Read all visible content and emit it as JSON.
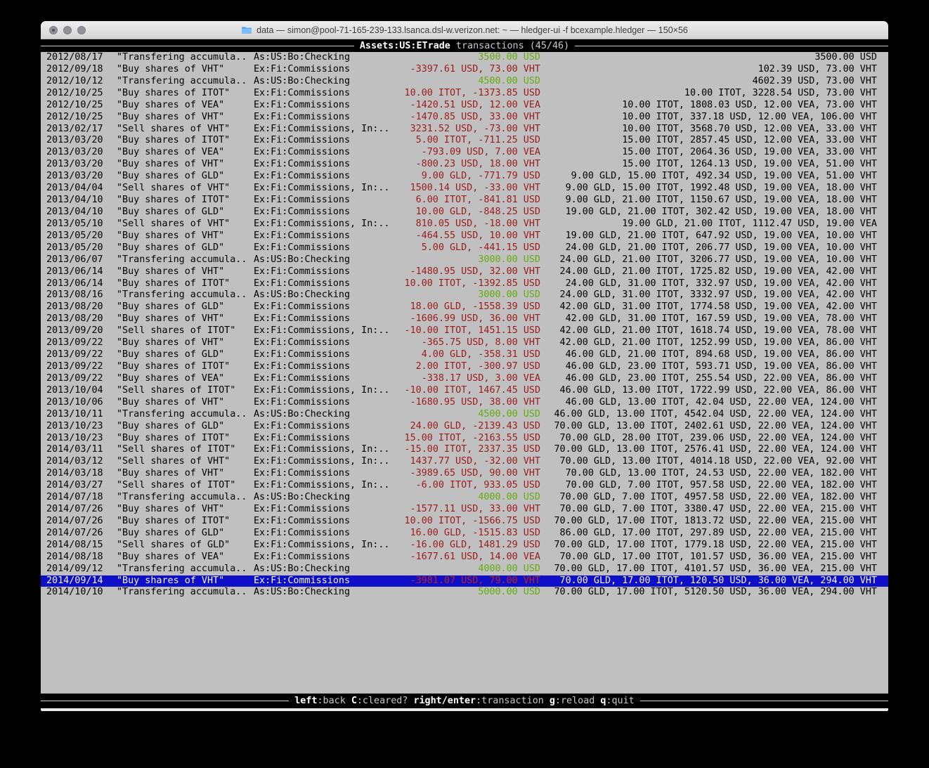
{
  "window": {
    "title": "data — simon@pool-71-165-239-133.lsanca.dsl-w.verizon.net: ~ — hledger-ui -f bcexample.hledger — 150×56"
  },
  "header": {
    "account": "Assets:US:ETrade",
    "mode": " transactions (45/46)"
  },
  "footer": {
    "keys": [
      {
        "key": "left",
        "label": ":back"
      },
      {
        "key": "C",
        "label": ":cleared?"
      },
      {
        "key": "right/enter",
        "label": ":transaction"
      },
      {
        "key": "g",
        "label": ":reload"
      },
      {
        "key": "q",
        "label": ":quit"
      }
    ]
  },
  "colors": {
    "term-bg": "#c0c0c0",
    "neg-red": "#9b1b1b",
    "pos-green": "#63ae0d",
    "sel-bg": "#0f0fc8",
    "sel-red": "#bb2222",
    "bar-dim": "#c9c9c9",
    "folder-blue": "#58a7f3"
  },
  "register": {
    "rows": [
      {
        "date": "2012/08/17",
        "description": "\"Transfering accumula..",
        "accounts": "As:US:Bo:Checking",
        "amount": "3500.00 USD",
        "amount_color": "green",
        "balance": "3500.00 USD",
        "selected": false
      },
      {
        "date": "2012/09/18",
        "description": "\"Buy shares of VHT\"",
        "accounts": "Ex:Fi:Commissions",
        "amount": "-3397.61 USD, 73.00 VHT",
        "amount_color": "red",
        "balance": "102.39 USD, 73.00 VHT",
        "selected": false
      },
      {
        "date": "2012/10/12",
        "description": "\"Transfering accumula..",
        "accounts": "As:US:Bo:Checking",
        "amount": "4500.00 USD",
        "amount_color": "green",
        "balance": "4602.39 USD, 73.00 VHT",
        "selected": false
      },
      {
        "date": "2012/10/25",
        "description": "\"Buy shares of ITOT\"",
        "accounts": "Ex:Fi:Commissions",
        "amount": "10.00 ITOT, -1373.85 USD",
        "amount_color": "red",
        "balance": "10.00 ITOT, 3228.54 USD, 73.00 VHT",
        "selected": false
      },
      {
        "date": "2012/10/25",
        "description": "\"Buy shares of VEA\"",
        "accounts": "Ex:Fi:Commissions",
        "amount": "-1420.51 USD, 12.00 VEA",
        "amount_color": "red",
        "balance": "10.00 ITOT, 1808.03 USD, 12.00 VEA, 73.00 VHT",
        "selected": false
      },
      {
        "date": "2012/10/25",
        "description": "\"Buy shares of VHT\"",
        "accounts": "Ex:Fi:Commissions",
        "amount": "-1470.85 USD, 33.00 VHT",
        "amount_color": "red",
        "balance": "10.00 ITOT, 337.18 USD, 12.00 VEA, 106.00 VHT",
        "selected": false
      },
      {
        "date": "2013/02/17",
        "description": "\"Sell shares of VHT\"",
        "accounts": "Ex:Fi:Commissions, In:..",
        "amount": "3231.52 USD, -73.00 VHT",
        "amount_color": "red",
        "balance": "10.00 ITOT, 3568.70 USD, 12.00 VEA, 33.00 VHT",
        "selected": false
      },
      {
        "date": "2013/03/20",
        "description": "\"Buy shares of ITOT\"",
        "accounts": "Ex:Fi:Commissions",
        "amount": "5.00 ITOT, -711.25 USD",
        "amount_color": "red",
        "balance": "15.00 ITOT, 2857.45 USD, 12.00 VEA, 33.00 VHT",
        "selected": false
      },
      {
        "date": "2013/03/20",
        "description": "\"Buy shares of VEA\"",
        "accounts": "Ex:Fi:Commissions",
        "amount": "-793.09 USD, 7.00 VEA",
        "amount_color": "red",
        "balance": "15.00 ITOT, 2064.36 USD, 19.00 VEA, 33.00 VHT",
        "selected": false
      },
      {
        "date": "2013/03/20",
        "description": "\"Buy shares of VHT\"",
        "accounts": "Ex:Fi:Commissions",
        "amount": "-800.23 USD, 18.00 VHT",
        "amount_color": "red",
        "balance": "15.00 ITOT, 1264.13 USD, 19.00 VEA, 51.00 VHT",
        "selected": false
      },
      {
        "date": "2013/03/20",
        "description": "\"Buy shares of GLD\"",
        "accounts": "Ex:Fi:Commissions",
        "amount": "9.00 GLD, -771.79 USD",
        "amount_color": "red",
        "balance": "9.00 GLD, 15.00 ITOT, 492.34 USD, 19.00 VEA, 51.00 VHT",
        "selected": false
      },
      {
        "date": "2013/04/04",
        "description": "\"Sell shares of VHT\"",
        "accounts": "Ex:Fi:Commissions, In:..",
        "amount": "1500.14 USD, -33.00 VHT",
        "amount_color": "red",
        "balance": "9.00 GLD, 15.00 ITOT, 1992.48 USD, 19.00 VEA, 18.00 VHT",
        "selected": false
      },
      {
        "date": "2013/04/10",
        "description": "\"Buy shares of ITOT\"",
        "accounts": "Ex:Fi:Commissions",
        "amount": "6.00 ITOT, -841.81 USD",
        "amount_color": "red",
        "balance": "9.00 GLD, 21.00 ITOT, 1150.67 USD, 19.00 VEA, 18.00 VHT",
        "selected": false
      },
      {
        "date": "2013/04/10",
        "description": "\"Buy shares of GLD\"",
        "accounts": "Ex:Fi:Commissions",
        "amount": "10.00 GLD, -848.25 USD",
        "amount_color": "red",
        "balance": "19.00 GLD, 21.00 ITOT, 302.42 USD, 19.00 VEA, 18.00 VHT",
        "selected": false
      },
      {
        "date": "2013/05/10",
        "description": "\"Sell shares of VHT\"",
        "accounts": "Ex:Fi:Commissions, In:..",
        "amount": "810.05 USD, -18.00 VHT",
        "amount_color": "red",
        "balance": "19.00 GLD, 21.00 ITOT, 1112.47 USD, 19.00 VEA",
        "selected": false
      },
      {
        "date": "2013/05/20",
        "description": "\"Buy shares of VHT\"",
        "accounts": "Ex:Fi:Commissions",
        "amount": "-464.55 USD, 10.00 VHT",
        "amount_color": "red",
        "balance": "19.00 GLD, 21.00 ITOT, 647.92 USD, 19.00 VEA, 10.00 VHT",
        "selected": false
      },
      {
        "date": "2013/05/20",
        "description": "\"Buy shares of GLD\"",
        "accounts": "Ex:Fi:Commissions",
        "amount": "5.00 GLD, -441.15 USD",
        "amount_color": "red",
        "balance": "24.00 GLD, 21.00 ITOT, 206.77 USD, 19.00 VEA, 10.00 VHT",
        "selected": false
      },
      {
        "date": "2013/06/07",
        "description": "\"Transfering accumula..",
        "accounts": "As:US:Bo:Checking",
        "amount": "3000.00 USD",
        "amount_color": "green",
        "balance": "24.00 GLD, 21.00 ITOT, 3206.77 USD, 19.00 VEA, 10.00 VHT",
        "selected": false
      },
      {
        "date": "2013/06/14",
        "description": "\"Buy shares of VHT\"",
        "accounts": "Ex:Fi:Commissions",
        "amount": "-1480.95 USD, 32.00 VHT",
        "amount_color": "red",
        "balance": "24.00 GLD, 21.00 ITOT, 1725.82 USD, 19.00 VEA, 42.00 VHT",
        "selected": false
      },
      {
        "date": "2013/06/14",
        "description": "\"Buy shares of ITOT\"",
        "accounts": "Ex:Fi:Commissions",
        "amount": "10.00 ITOT, -1392.85 USD",
        "amount_color": "red",
        "balance": "24.00 GLD, 31.00 ITOT, 332.97 USD, 19.00 VEA, 42.00 VHT",
        "selected": false
      },
      {
        "date": "2013/08/16",
        "description": "\"Transfering accumula..",
        "accounts": "As:US:Bo:Checking",
        "amount": "3000.00 USD",
        "amount_color": "green",
        "balance": "24.00 GLD, 31.00 ITOT, 3332.97 USD, 19.00 VEA, 42.00 VHT",
        "selected": false
      },
      {
        "date": "2013/08/20",
        "description": "\"Buy shares of GLD\"",
        "accounts": "Ex:Fi:Commissions",
        "amount": "18.00 GLD, -1558.39 USD",
        "amount_color": "red",
        "balance": "42.00 GLD, 31.00 ITOT, 1774.58 USD, 19.00 VEA, 42.00 VHT",
        "selected": false
      },
      {
        "date": "2013/08/20",
        "description": "\"Buy shares of VHT\"",
        "accounts": "Ex:Fi:Commissions",
        "amount": "-1606.99 USD, 36.00 VHT",
        "amount_color": "red",
        "balance": "42.00 GLD, 31.00 ITOT, 167.59 USD, 19.00 VEA, 78.00 VHT",
        "selected": false
      },
      {
        "date": "2013/09/20",
        "description": "\"Sell shares of ITOT\"",
        "accounts": "Ex:Fi:Commissions, In:..",
        "amount": "-10.00 ITOT, 1451.15 USD",
        "amount_color": "red",
        "balance": "42.00 GLD, 21.00 ITOT, 1618.74 USD, 19.00 VEA, 78.00 VHT",
        "selected": false
      },
      {
        "date": "2013/09/22",
        "description": "\"Buy shares of VHT\"",
        "accounts": "Ex:Fi:Commissions",
        "amount": "-365.75 USD, 8.00 VHT",
        "amount_color": "red",
        "balance": "42.00 GLD, 21.00 ITOT, 1252.99 USD, 19.00 VEA, 86.00 VHT",
        "selected": false
      },
      {
        "date": "2013/09/22",
        "description": "\"Buy shares of GLD\"",
        "accounts": "Ex:Fi:Commissions",
        "amount": "4.00 GLD, -358.31 USD",
        "amount_color": "red",
        "balance": "46.00 GLD, 21.00 ITOT, 894.68 USD, 19.00 VEA, 86.00 VHT",
        "selected": false
      },
      {
        "date": "2013/09/22",
        "description": "\"Buy shares of ITOT\"",
        "accounts": "Ex:Fi:Commissions",
        "amount": "2.00 ITOT, -300.97 USD",
        "amount_color": "red",
        "balance": "46.00 GLD, 23.00 ITOT, 593.71 USD, 19.00 VEA, 86.00 VHT",
        "selected": false
      },
      {
        "date": "2013/09/22",
        "description": "\"Buy shares of VEA\"",
        "accounts": "Ex:Fi:Commissions",
        "amount": "-338.17 USD, 3.00 VEA",
        "amount_color": "red",
        "balance": "46.00 GLD, 23.00 ITOT, 255.54 USD, 22.00 VEA, 86.00 VHT",
        "selected": false
      },
      {
        "date": "2013/10/04",
        "description": "\"Sell shares of ITOT\"",
        "accounts": "Ex:Fi:Commissions, In:..",
        "amount": "-10.00 ITOT, 1467.45 USD",
        "amount_color": "red",
        "balance": "46.00 GLD, 13.00 ITOT, 1722.99 USD, 22.00 VEA, 86.00 VHT",
        "selected": false
      },
      {
        "date": "2013/10/06",
        "description": "\"Buy shares of VHT\"",
        "accounts": "Ex:Fi:Commissions",
        "amount": "-1680.95 USD, 38.00 VHT",
        "amount_color": "red",
        "balance": "46.00 GLD, 13.00 ITOT, 42.04 USD, 22.00 VEA, 124.00 VHT",
        "selected": false
      },
      {
        "date": "2013/10/11",
        "description": "\"Transfering accumula..",
        "accounts": "As:US:Bo:Checking",
        "amount": "4500.00 USD",
        "amount_color": "green",
        "balance": "46.00 GLD, 13.00 ITOT, 4542.04 USD, 22.00 VEA, 124.00 VHT",
        "selected": false
      },
      {
        "date": "2013/10/23",
        "description": "\"Buy shares of GLD\"",
        "accounts": "Ex:Fi:Commissions",
        "amount": "24.00 GLD, -2139.43 USD",
        "amount_color": "red",
        "balance": "70.00 GLD, 13.00 ITOT, 2402.61 USD, 22.00 VEA, 124.00 VHT",
        "selected": false
      },
      {
        "date": "2013/10/23",
        "description": "\"Buy shares of ITOT\"",
        "accounts": "Ex:Fi:Commissions",
        "amount": "15.00 ITOT, -2163.55 USD",
        "amount_color": "red",
        "balance": "70.00 GLD, 28.00 ITOT, 239.06 USD, 22.00 VEA, 124.00 VHT",
        "selected": false
      },
      {
        "date": "2014/03/11",
        "description": "\"Sell shares of ITOT\"",
        "accounts": "Ex:Fi:Commissions, In:..",
        "amount": "-15.00 ITOT, 2337.35 USD",
        "amount_color": "red",
        "balance": "70.00 GLD, 13.00 ITOT, 2576.41 USD, 22.00 VEA, 124.00 VHT",
        "selected": false
      },
      {
        "date": "2014/03/12",
        "description": "\"Sell shares of VHT\"",
        "accounts": "Ex:Fi:Commissions, In:..",
        "amount": "1437.77 USD, -32.00 VHT",
        "amount_color": "red",
        "balance": "70.00 GLD, 13.00 ITOT, 4014.18 USD, 22.00 VEA, 92.00 VHT",
        "selected": false
      },
      {
        "date": "2014/03/18",
        "description": "\"Buy shares of VHT\"",
        "accounts": "Ex:Fi:Commissions",
        "amount": "-3989.65 USD, 90.00 VHT",
        "amount_color": "red",
        "balance": "70.00 GLD, 13.00 ITOT, 24.53 USD, 22.00 VEA, 182.00 VHT",
        "selected": false
      },
      {
        "date": "2014/03/27",
        "description": "\"Sell shares of ITOT\"",
        "accounts": "Ex:Fi:Commissions, In:..",
        "amount": "-6.00 ITOT, 933.05 USD",
        "amount_color": "red",
        "balance": "70.00 GLD, 7.00 ITOT, 957.58 USD, 22.00 VEA, 182.00 VHT",
        "selected": false
      },
      {
        "date": "2014/07/18",
        "description": "\"Transfering accumula..",
        "accounts": "As:US:Bo:Checking",
        "amount": "4000.00 USD",
        "amount_color": "green",
        "balance": "70.00 GLD, 7.00 ITOT, 4957.58 USD, 22.00 VEA, 182.00 VHT",
        "selected": false
      },
      {
        "date": "2014/07/26",
        "description": "\"Buy shares of VHT\"",
        "accounts": "Ex:Fi:Commissions",
        "amount": "-1577.11 USD, 33.00 VHT",
        "amount_color": "red",
        "balance": "70.00 GLD, 7.00 ITOT, 3380.47 USD, 22.00 VEA, 215.00 VHT",
        "selected": false
      },
      {
        "date": "2014/07/26",
        "description": "\"Buy shares of ITOT\"",
        "accounts": "Ex:Fi:Commissions",
        "amount": "10.00 ITOT, -1566.75 USD",
        "amount_color": "red",
        "balance": "70.00 GLD, 17.00 ITOT, 1813.72 USD, 22.00 VEA, 215.00 VHT",
        "selected": false
      },
      {
        "date": "2014/07/26",
        "description": "\"Buy shares of GLD\"",
        "accounts": "Ex:Fi:Commissions",
        "amount": "16.00 GLD, -1515.83 USD",
        "amount_color": "red",
        "balance": "86.00 GLD, 17.00 ITOT, 297.89 USD, 22.00 VEA, 215.00 VHT",
        "selected": false
      },
      {
        "date": "2014/08/15",
        "description": "\"Sell shares of GLD\"",
        "accounts": "Ex:Fi:Commissions, In:..",
        "amount": "-16.00 GLD, 1481.29 USD",
        "amount_color": "red",
        "balance": "70.00 GLD, 17.00 ITOT, 1779.18 USD, 22.00 VEA, 215.00 VHT",
        "selected": false
      },
      {
        "date": "2014/08/18",
        "description": "\"Buy shares of VEA\"",
        "accounts": "Ex:Fi:Commissions",
        "amount": "-1677.61 USD, 14.00 VEA",
        "amount_color": "red",
        "balance": "70.00 GLD, 17.00 ITOT, 101.57 USD, 36.00 VEA, 215.00 VHT",
        "selected": false
      },
      {
        "date": "2014/09/12",
        "description": "\"Transfering accumula..",
        "accounts": "As:US:Bo:Checking",
        "amount": "4000.00 USD",
        "amount_color": "green",
        "balance": "70.00 GLD, 17.00 ITOT, 4101.57 USD, 36.00 VEA, 215.00 VHT",
        "selected": false
      },
      {
        "date": "2014/09/14",
        "description": "\"Buy shares of VHT\"",
        "accounts": "Ex:Fi:Commissions",
        "amount": "-3981.07 USD, 79.00 VHT",
        "amount_color": "red",
        "balance": "70.00 GLD, 17.00 ITOT, 120.50 USD, 36.00 VEA, 294.00 VHT",
        "selected": true
      },
      {
        "date": "2014/10/10",
        "description": "\"Transfering accumula..",
        "accounts": "As:US:Bo:Checking",
        "amount": "5000.00 USD",
        "amount_color": "green",
        "balance": "70.00 GLD, 17.00 ITOT, 5120.50 USD, 36.00 VEA, 294.00 VHT",
        "selected": false
      }
    ]
  }
}
